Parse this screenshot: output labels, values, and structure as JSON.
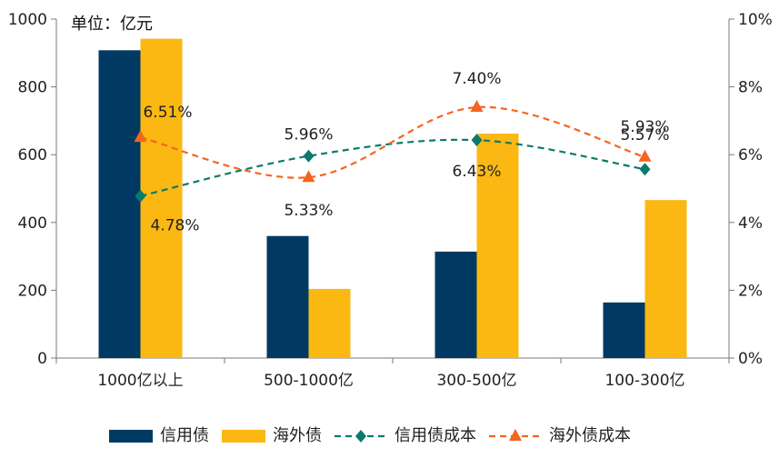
{
  "chart_data": {
    "type": "bar+line",
    "unit_label": "单位：亿元",
    "categories": [
      "1000亿以上",
      "500-1000亿",
      "300-500亿",
      "100-300亿"
    ],
    "bars": [
      {
        "name": "信用债",
        "color": "#003a63",
        "values": [
          908,
          360,
          314,
          164
        ]
      },
      {
        "name": "海外债",
        "color": "#fbb812",
        "values": [
          942,
          204,
          662,
          466
        ]
      }
    ],
    "lines": [
      {
        "name": "信用债成本",
        "color": "#0b7a6b",
        "marker": "diamond",
        "values": [
          4.78,
          5.96,
          6.43,
          5.57
        ],
        "labels": [
          "4.78%",
          "5.96%",
          "6.43%",
          "5.57%"
        ]
      },
      {
        "name": "海外债成本",
        "color": "#f4651f",
        "marker": "triangle",
        "values": [
          6.51,
          5.33,
          7.4,
          5.93
        ],
        "labels": [
          "6.51%",
          "5.33%",
          "7.40%",
          "5.93%"
        ]
      }
    ],
    "y_left": {
      "min": 0,
      "max": 1000,
      "step": 200,
      "ticks": [
        "0",
        "200",
        "400",
        "600",
        "800",
        "1000"
      ]
    },
    "y_right": {
      "min": 0,
      "max": 10,
      "step": 2,
      "ticks": [
        "0%",
        "2%",
        "4%",
        "6%",
        "8%",
        "10%"
      ]
    },
    "legend": [
      "信用债",
      "海外债",
      "信用债成本",
      "海外债成本"
    ],
    "legend_position": "bottom",
    "grid": false
  }
}
